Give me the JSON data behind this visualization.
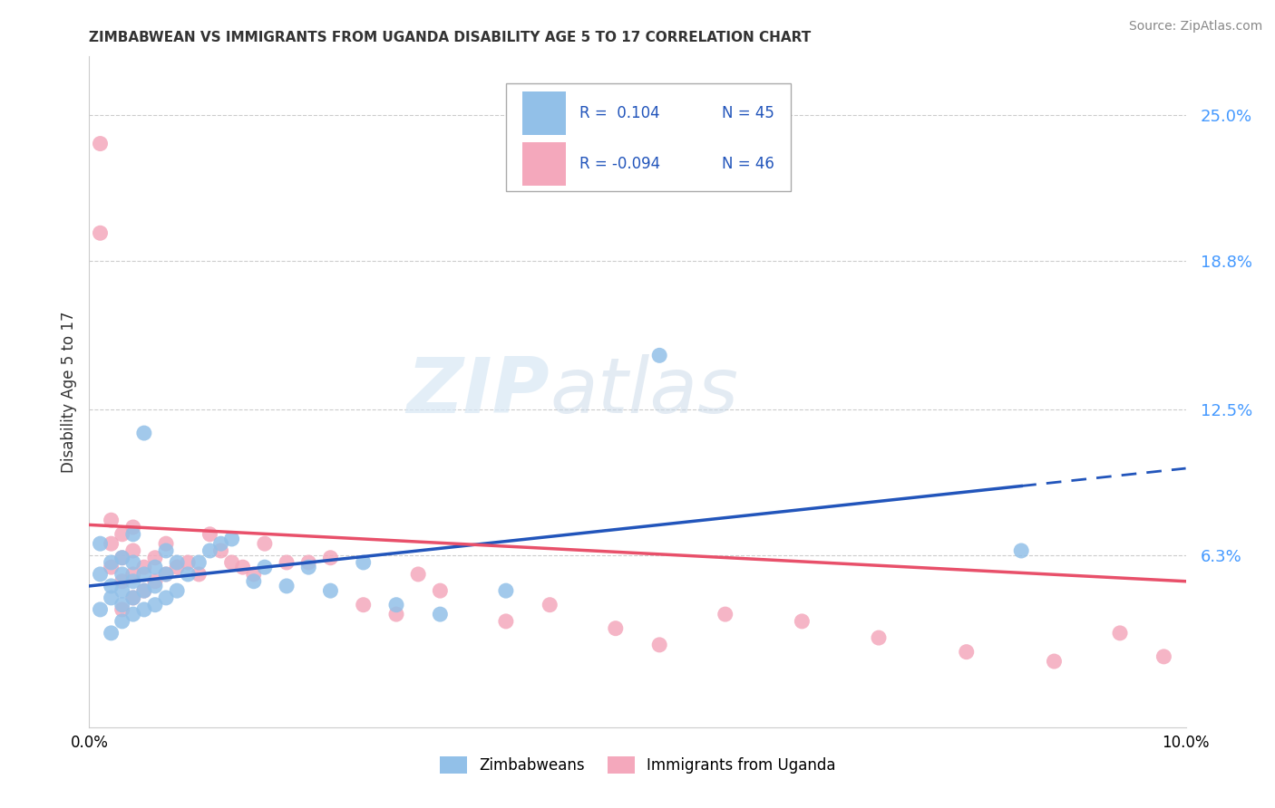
{
  "title": "ZIMBABWEAN VS IMMIGRANTS FROM UGANDA DISABILITY AGE 5 TO 17 CORRELATION CHART",
  "source": "Source: ZipAtlas.com",
  "ylabel": "Disability Age 5 to 17",
  "yticklabels": [
    "6.3%",
    "12.5%",
    "18.8%",
    "25.0%"
  ],
  "ytick_values": [
    0.063,
    0.125,
    0.188,
    0.25
  ],
  "xlim": [
    0.0,
    0.1
  ],
  "ylim": [
    -0.01,
    0.275
  ],
  "legend_label_blue": "Zimbabweans",
  "legend_label_pink": "Immigrants from Uganda",
  "blue_color": "#92c0e8",
  "pink_color": "#f4a8bc",
  "trend_blue_color": "#2255bb",
  "trend_pink_color": "#e8506a",
  "blue_x": [
    0.001,
    0.001,
    0.001,
    0.002,
    0.002,
    0.002,
    0.002,
    0.003,
    0.003,
    0.003,
    0.003,
    0.003,
    0.004,
    0.004,
    0.004,
    0.004,
    0.004,
    0.005,
    0.005,
    0.005,
    0.005,
    0.006,
    0.006,
    0.006,
    0.007,
    0.007,
    0.007,
    0.008,
    0.008,
    0.009,
    0.01,
    0.011,
    0.012,
    0.013,
    0.015,
    0.016,
    0.018,
    0.02,
    0.022,
    0.025,
    0.028,
    0.032,
    0.038,
    0.052,
    0.085
  ],
  "blue_y": [
    0.04,
    0.055,
    0.068,
    0.03,
    0.045,
    0.05,
    0.06,
    0.035,
    0.042,
    0.048,
    0.055,
    0.062,
    0.038,
    0.045,
    0.052,
    0.06,
    0.072,
    0.04,
    0.048,
    0.055,
    0.115,
    0.042,
    0.05,
    0.058,
    0.045,
    0.055,
    0.065,
    0.048,
    0.06,
    0.055,
    0.06,
    0.065,
    0.068,
    0.07,
    0.052,
    0.058,
    0.05,
    0.058,
    0.048,
    0.06,
    0.042,
    0.038,
    0.048,
    0.148,
    0.065
  ],
  "pink_x": [
    0.001,
    0.001,
    0.002,
    0.002,
    0.002,
    0.003,
    0.003,
    0.003,
    0.003,
    0.004,
    0.004,
    0.004,
    0.004,
    0.005,
    0.005,
    0.006,
    0.006,
    0.007,
    0.007,
    0.008,
    0.009,
    0.01,
    0.011,
    0.012,
    0.013,
    0.014,
    0.015,
    0.016,
    0.018,
    0.02,
    0.022,
    0.025,
    0.028,
    0.03,
    0.032,
    0.038,
    0.042,
    0.048,
    0.052,
    0.058,
    0.065,
    0.072,
    0.08,
    0.088,
    0.094,
    0.098
  ],
  "pink_y": [
    0.238,
    0.2,
    0.058,
    0.068,
    0.078,
    0.04,
    0.052,
    0.062,
    0.072,
    0.045,
    0.055,
    0.065,
    0.075,
    0.048,
    0.058,
    0.052,
    0.062,
    0.055,
    0.068,
    0.058,
    0.06,
    0.055,
    0.072,
    0.065,
    0.06,
    0.058,
    0.055,
    0.068,
    0.06,
    0.06,
    0.062,
    0.042,
    0.038,
    0.055,
    0.048,
    0.035,
    0.042,
    0.032,
    0.025,
    0.038,
    0.035,
    0.028,
    0.022,
    0.018,
    0.03,
    0.02
  ],
  "watermark_zip": "ZIP",
  "watermark_atlas": "atlas",
  "background_color": "#ffffff",
  "grid_color": "#cccccc"
}
